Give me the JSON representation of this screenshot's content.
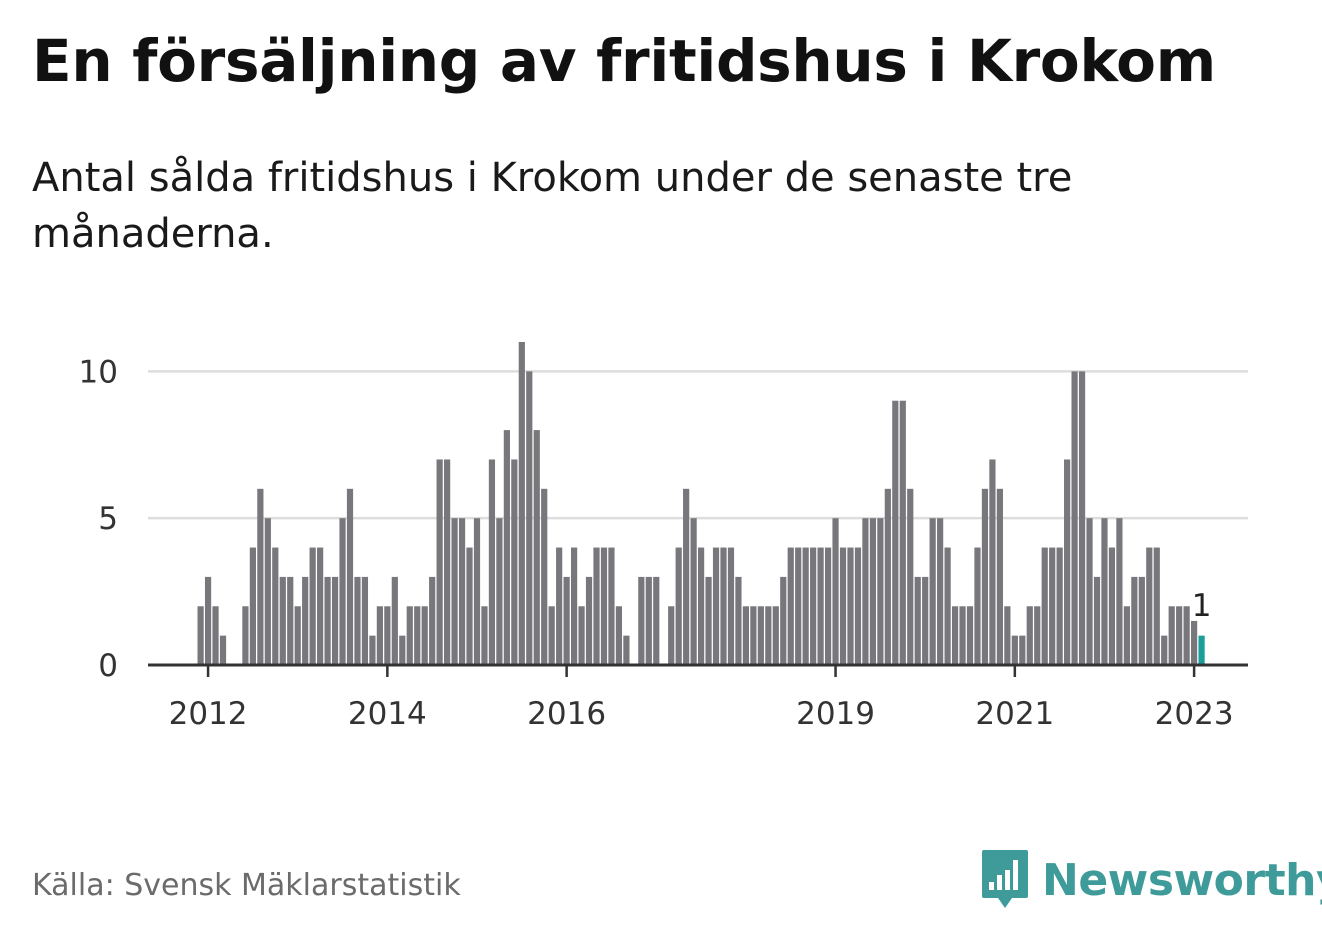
{
  "title": "En försäljning av fritidshus i Krokom",
  "subtitle": "Antal sålda fritidshus i Krokom under de senaste tre månaderna.",
  "source": "Källa: Svensk Mäklarstatistik",
  "logo": {
    "text": "Newsworthy",
    "icon": "newsworthy-logo-icon",
    "color": "#3e9b99"
  },
  "colors": {
    "bar": "#78777c",
    "highlight": "#1a9e97",
    "grid": "#dddddd",
    "axis": "#333333"
  },
  "chart_data": {
    "type": "bar",
    "title": "En försäljning av fritidshus i Krokom",
    "subtitle": "Antal sålda fritidshus i Krokom under de senaste tre månaderna.",
    "xlabel": "",
    "ylabel": "",
    "start_month": "2011-12",
    "frequency": "monthly",
    "ylim": [
      0,
      11
    ],
    "yticks": [
      0,
      5,
      10
    ],
    "xtick_labels": [
      {
        "label": "2012",
        "month": "2012-01"
      },
      {
        "label": "2014",
        "month": "2014-01"
      },
      {
        "label": "2016",
        "month": "2016-01"
      },
      {
        "label": "2019",
        "month": "2019-01"
      },
      {
        "label": "2021",
        "month": "2021-01"
      },
      {
        "label": "2023",
        "month": "2023-01"
      }
    ],
    "grid": true,
    "values": [
      2,
      3,
      2,
      1,
      0,
      0,
      2,
      4,
      6,
      5,
      4,
      3,
      3,
      2,
      3,
      4,
      4,
      3,
      3,
      5,
      6,
      3,
      3,
      1,
      2,
      2,
      3,
      1,
      2,
      2,
      2,
      3,
      7,
      7,
      5,
      5,
      4,
      5,
      2,
      7,
      5,
      8,
      7,
      11,
      10,
      8,
      6,
      2,
      4,
      3,
      4,
      2,
      3,
      4,
      4,
      4,
      2,
      1,
      0,
      3,
      3,
      3,
      0,
      2,
      4,
      6,
      5,
      4,
      3,
      4,
      4,
      4,
      3,
      2,
      2,
      2,
      2,
      2,
      3,
      4,
      4,
      4,
      4,
      4,
      4,
      5,
      4,
      4,
      4,
      5,
      5,
      5,
      6,
      9,
      9,
      6,
      3,
      3,
      5,
      5,
      4,
      2,
      2,
      2,
      4,
      6,
      7,
      6,
      2,
      1,
      1,
      2,
      2,
      4,
      4,
      4,
      7,
      10,
      10,
      5,
      3,
      5,
      4,
      5,
      2,
      3,
      3,
      4,
      4,
      1,
      2,
      2,
      2,
      1.5,
      1
    ],
    "highlight_last": true,
    "annotation": {
      "text": "1",
      "value": 1
    }
  }
}
